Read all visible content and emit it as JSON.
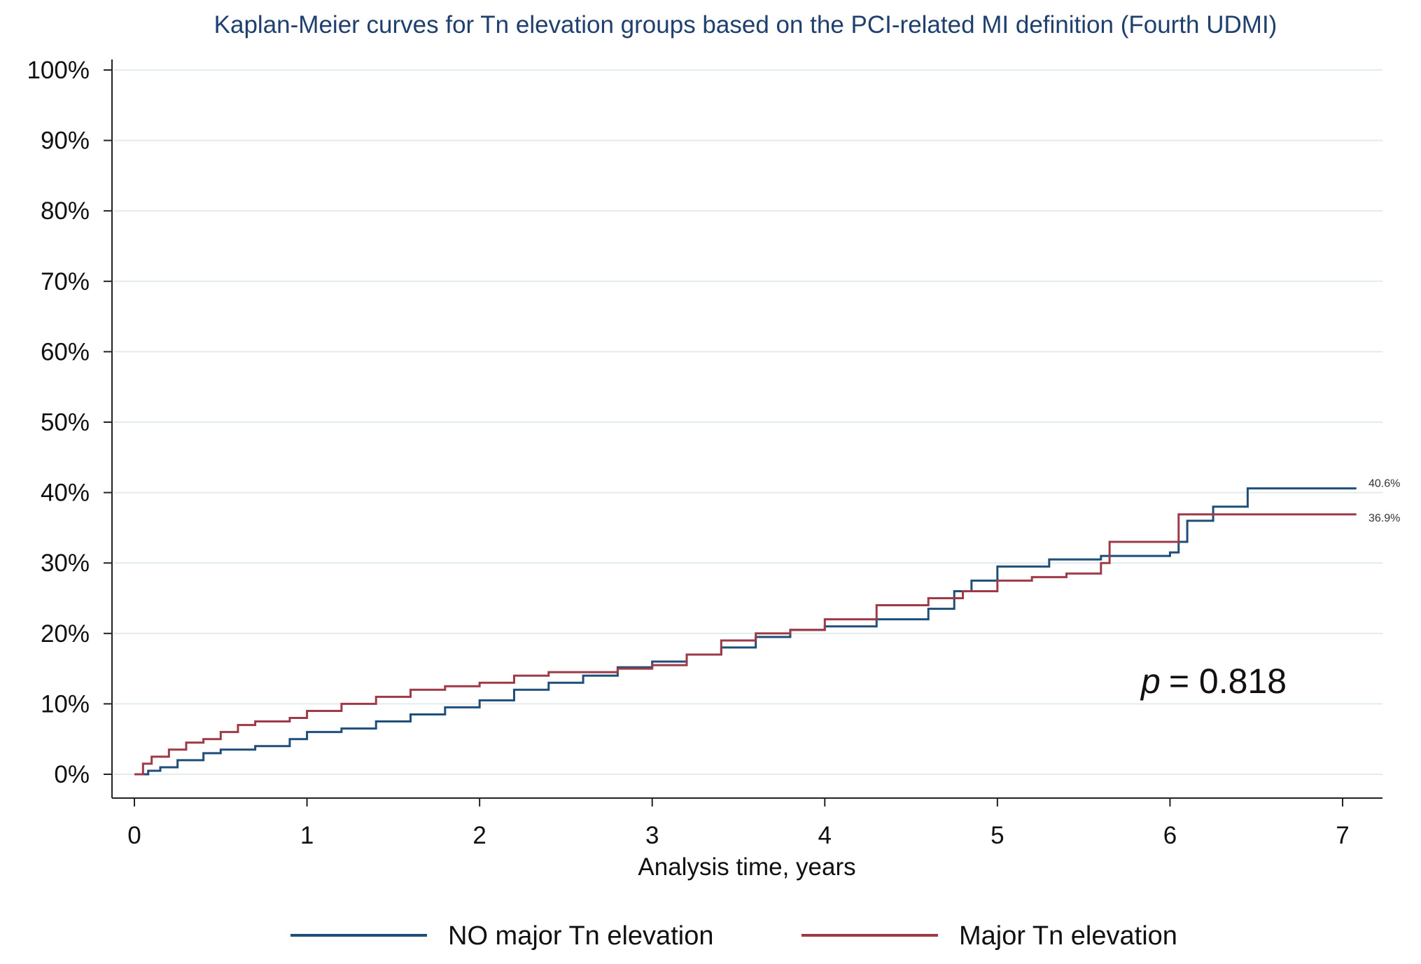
{
  "chart_data": {
    "type": "line",
    "title": "Kaplan-Meier curves for Tn elevation groups based on the PCI-related MI definition (Fourth UDMI)",
    "xlabel": "Analysis time, years",
    "ylabel": "",
    "xlim": [
      0,
      7
    ],
    "ylim": [
      0,
      100
    ],
    "xticks": [
      "0",
      "1",
      "2",
      "3",
      "4",
      "5",
      "6",
      "7"
    ],
    "yticks": [
      "0%",
      "10%",
      "20%",
      "30%",
      "40%",
      "50%",
      "60%",
      "70%",
      "80%",
      "90%",
      "100%"
    ],
    "grid": true,
    "legend_position": "bottom",
    "annotation": {
      "p_symbol": "p",
      "p_text": "= 0.818"
    },
    "series": [
      {
        "name": "NO major Tn elevation",
        "color": "#1f4e79",
        "end_label": "40.6%",
        "x": [
          0,
          0.08,
          0.15,
          0.25,
          0.4,
          0.5,
          0.7,
          0.9,
          1.0,
          1.2,
          1.4,
          1.6,
          1.8,
          2.0,
          2.2,
          2.4,
          2.6,
          2.8,
          3.0,
          3.2,
          3.4,
          3.6,
          3.8,
          4.0,
          4.3,
          4.6,
          4.75,
          4.85,
          5.0,
          5.3,
          5.6,
          6.0,
          6.05,
          6.1,
          6.25,
          6.45,
          7.08
        ],
        "y": [
          0,
          0.5,
          1,
          2,
          3,
          3.5,
          4,
          5,
          6,
          6.5,
          7.5,
          8.5,
          9.5,
          10.5,
          12,
          13,
          14,
          15.2,
          16,
          17,
          18,
          19.5,
          20.5,
          21,
          22,
          23.5,
          26,
          27.5,
          29.5,
          30.5,
          31,
          31.5,
          33,
          36,
          38,
          40.6,
          40.6
        ]
      },
      {
        "name": "Major Tn elevation",
        "color": "#9e3a48",
        "end_label": "36.9%",
        "x": [
          0,
          0.05,
          0.1,
          0.2,
          0.3,
          0.4,
          0.5,
          0.6,
          0.7,
          0.9,
          1.0,
          1.2,
          1.4,
          1.6,
          1.8,
          2.0,
          2.2,
          2.4,
          2.6,
          2.8,
          3.0,
          3.2,
          3.4,
          3.6,
          3.8,
          4.0,
          4.3,
          4.6,
          4.8,
          5.0,
          5.2,
          5.4,
          5.6,
          5.65,
          6.0,
          6.05,
          7.08
        ],
        "y": [
          0,
          1.5,
          2.5,
          3.5,
          4.5,
          5,
          6,
          7,
          7.5,
          8,
          9,
          10,
          11,
          12,
          12.5,
          13,
          14,
          14.5,
          14.5,
          15,
          15.5,
          17,
          19,
          20,
          20.5,
          22,
          24,
          25,
          26,
          27.5,
          28,
          28.5,
          30,
          33,
          33,
          36.9,
          36.9
        ]
      }
    ]
  }
}
